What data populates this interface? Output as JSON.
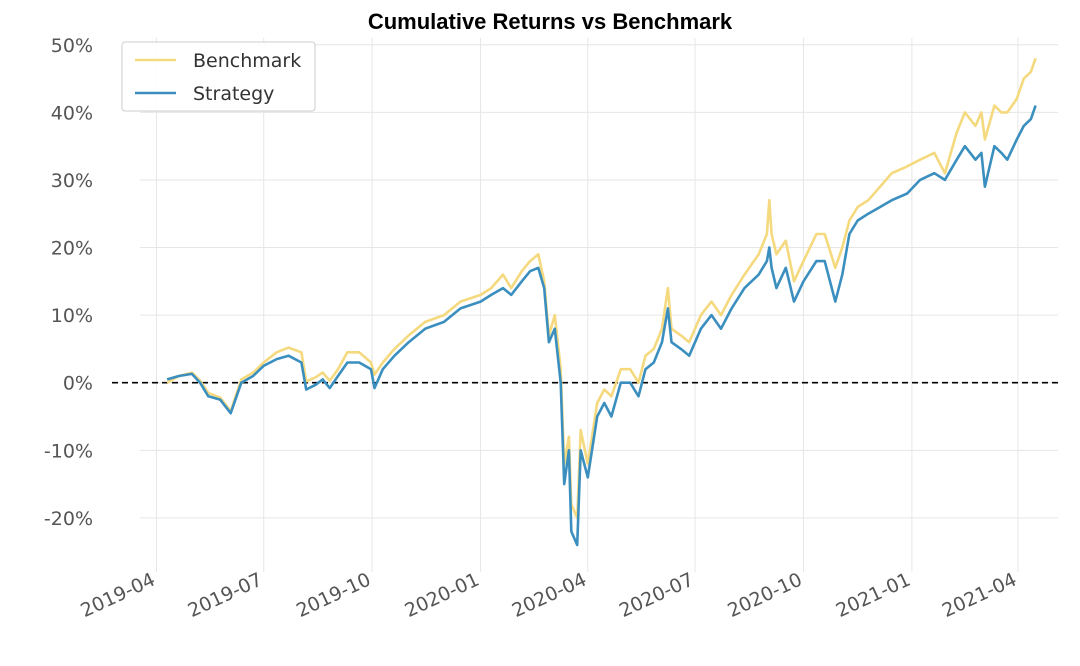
{
  "chart_data": {
    "type": "line",
    "title": "Cumulative Returns vs Benchmark",
    "xlabel": "",
    "ylabel": "",
    "ylim": [
      -0.28,
      0.51
    ],
    "xlim": [
      "2019-03-18",
      "2021-05-05"
    ],
    "grid": true,
    "legend_position": "top-left",
    "x_ticks": [
      {
        "date": "2019-04-01",
        "label": "2019-04"
      },
      {
        "date": "2019-07-01",
        "label": "2019-07"
      },
      {
        "date": "2019-10-01",
        "label": "2019-10"
      },
      {
        "date": "2020-01-01",
        "label": "2020-01"
      },
      {
        "date": "2020-04-01",
        "label": "2020-04"
      },
      {
        "date": "2020-07-01",
        "label": "2020-07"
      },
      {
        "date": "2020-10-01",
        "label": "2020-10"
      },
      {
        "date": "2021-01-01",
        "label": "2021-01"
      },
      {
        "date": "2021-04-01",
        "label": "2021-04"
      }
    ],
    "y_ticks": [
      {
        "value": 0.5,
        "label": "50%"
      },
      {
        "value": 0.4,
        "label": "40%"
      },
      {
        "value": 0.3,
        "label": "30%"
      },
      {
        "value": 0.2,
        "label": "20%"
      },
      {
        "value": 0.1,
        "label": "10%"
      },
      {
        "value": 0.0,
        "label": "0%"
      },
      {
        "value": -0.1,
        "label": "-10%"
      },
      {
        "value": -0.2,
        "label": "-20%"
      }
    ],
    "reference_line": {
      "value": 0.0,
      "style": "dashed",
      "color": "#000000"
    },
    "series": [
      {
        "name": "Benchmark",
        "color": "#f5d97e",
        "points": [
          [
            "2019-04-10",
            0.0
          ],
          [
            "2019-04-20",
            0.01
          ],
          [
            "2019-05-01",
            0.015
          ],
          [
            "2019-05-08",
            0.003
          ],
          [
            "2019-05-15",
            -0.015
          ],
          [
            "2019-05-25",
            -0.022
          ],
          [
            "2019-06-03",
            -0.042
          ],
          [
            "2019-06-12",
            0.005
          ],
          [
            "2019-06-22",
            0.015
          ],
          [
            "2019-07-01",
            0.03
          ],
          [
            "2019-07-12",
            0.045
          ],
          [
            "2019-07-22",
            0.052
          ],
          [
            "2019-08-02",
            0.045
          ],
          [
            "2019-08-06",
            0.002
          ],
          [
            "2019-08-14",
            0.008
          ],
          [
            "2019-08-20",
            0.015
          ],
          [
            "2019-08-26",
            0.003
          ],
          [
            "2019-09-02",
            0.02
          ],
          [
            "2019-09-10",
            0.045
          ],
          [
            "2019-09-20",
            0.045
          ],
          [
            "2019-09-30",
            0.03
          ],
          [
            "2019-10-03",
            0.012
          ],
          [
            "2019-10-10",
            0.03
          ],
          [
            "2019-10-20",
            0.05
          ],
          [
            "2019-11-01",
            0.07
          ],
          [
            "2019-11-15",
            0.09
          ],
          [
            "2019-12-01",
            0.1
          ],
          [
            "2019-12-15",
            0.12
          ],
          [
            "2020-01-01",
            0.13
          ],
          [
            "2020-01-10",
            0.14
          ],
          [
            "2020-01-20",
            0.16
          ],
          [
            "2020-01-27",
            0.14
          ],
          [
            "2020-02-05",
            0.165
          ],
          [
            "2020-02-12",
            0.18
          ],
          [
            "2020-02-19",
            0.19
          ],
          [
            "2020-02-24",
            0.15
          ],
          [
            "2020-02-28",
            0.07
          ],
          [
            "2020-03-04",
            0.1
          ],
          [
            "2020-03-09",
            0.02
          ],
          [
            "2020-03-12",
            -0.12
          ],
          [
            "2020-03-16",
            -0.08
          ],
          [
            "2020-03-18",
            -0.18
          ],
          [
            "2020-03-23",
            -0.2
          ],
          [
            "2020-03-26",
            -0.07
          ],
          [
            "2020-04-01",
            -0.12
          ],
          [
            "2020-04-09",
            -0.03
          ],
          [
            "2020-04-15",
            -0.01
          ],
          [
            "2020-04-21",
            -0.02
          ],
          [
            "2020-04-29",
            0.02
          ],
          [
            "2020-05-07",
            0.02
          ],
          [
            "2020-05-14",
            0.0
          ],
          [
            "2020-05-20",
            0.04
          ],
          [
            "2020-05-27",
            0.05
          ],
          [
            "2020-06-03",
            0.08
          ],
          [
            "2020-06-08",
            0.14
          ],
          [
            "2020-06-11",
            0.08
          ],
          [
            "2020-06-19",
            0.07
          ],
          [
            "2020-06-26",
            0.06
          ],
          [
            "2020-07-06",
            0.1
          ],
          [
            "2020-07-15",
            0.12
          ],
          [
            "2020-07-23",
            0.1
          ],
          [
            "2020-08-01",
            0.13
          ],
          [
            "2020-08-12",
            0.16
          ],
          [
            "2020-08-24",
            0.19
          ],
          [
            "2020-08-31",
            0.22
          ],
          [
            "2020-09-02",
            0.27
          ],
          [
            "2020-09-04",
            0.22
          ],
          [
            "2020-09-08",
            0.19
          ],
          [
            "2020-09-16",
            0.21
          ],
          [
            "2020-09-23",
            0.15
          ],
          [
            "2020-10-01",
            0.18
          ],
          [
            "2020-10-12",
            0.22
          ],
          [
            "2020-10-19",
            0.22
          ],
          [
            "2020-10-28",
            0.17
          ],
          [
            "2020-11-03",
            0.2
          ],
          [
            "2020-11-09",
            0.24
          ],
          [
            "2020-11-16",
            0.26
          ],
          [
            "2020-11-25",
            0.27
          ],
          [
            "2020-12-05",
            0.29
          ],
          [
            "2020-12-15",
            0.31
          ],
          [
            "2020-12-28",
            0.32
          ],
          [
            "2021-01-08",
            0.33
          ],
          [
            "2021-01-20",
            0.34
          ],
          [
            "2021-01-29",
            0.31
          ],
          [
            "2021-02-08",
            0.37
          ],
          [
            "2021-02-15",
            0.4
          ],
          [
            "2021-02-24",
            0.38
          ],
          [
            "2021-03-01",
            0.4
          ],
          [
            "2021-03-04",
            0.36
          ],
          [
            "2021-03-12",
            0.41
          ],
          [
            "2021-03-18",
            0.4
          ],
          [
            "2021-03-23",
            0.4
          ],
          [
            "2021-03-31",
            0.42
          ],
          [
            "2021-04-06",
            0.45
          ],
          [
            "2021-04-12",
            0.46
          ],
          [
            "2021-04-16",
            0.48
          ]
        ]
      },
      {
        "name": "Strategy",
        "color": "#3b8fbf",
        "points": [
          [
            "2019-04-10",
            0.005
          ],
          [
            "2019-04-20",
            0.01
          ],
          [
            "2019-05-01",
            0.013
          ],
          [
            "2019-05-08",
            0.0
          ],
          [
            "2019-05-15",
            -0.02
          ],
          [
            "2019-05-25",
            -0.025
          ],
          [
            "2019-06-03",
            -0.045
          ],
          [
            "2019-06-12",
            0.0
          ],
          [
            "2019-06-22",
            0.01
          ],
          [
            "2019-07-01",
            0.025
          ],
          [
            "2019-07-12",
            0.035
          ],
          [
            "2019-07-22",
            0.04
          ],
          [
            "2019-08-02",
            0.03
          ],
          [
            "2019-08-06",
            -0.01
          ],
          [
            "2019-08-14",
            -0.003
          ],
          [
            "2019-08-20",
            0.005
          ],
          [
            "2019-08-26",
            -0.008
          ],
          [
            "2019-09-02",
            0.01
          ],
          [
            "2019-09-10",
            0.03
          ],
          [
            "2019-09-20",
            0.03
          ],
          [
            "2019-09-30",
            0.02
          ],
          [
            "2019-10-03",
            -0.008
          ],
          [
            "2019-10-10",
            0.02
          ],
          [
            "2019-10-20",
            0.04
          ],
          [
            "2019-11-01",
            0.06
          ],
          [
            "2019-11-15",
            0.08
          ],
          [
            "2019-12-01",
            0.09
          ],
          [
            "2019-12-15",
            0.11
          ],
          [
            "2020-01-01",
            0.12
          ],
          [
            "2020-01-10",
            0.13
          ],
          [
            "2020-01-20",
            0.14
          ],
          [
            "2020-01-27",
            0.13
          ],
          [
            "2020-02-05",
            0.15
          ],
          [
            "2020-02-12",
            0.165
          ],
          [
            "2020-02-19",
            0.17
          ],
          [
            "2020-02-24",
            0.14
          ],
          [
            "2020-02-28",
            0.06
          ],
          [
            "2020-03-04",
            0.08
          ],
          [
            "2020-03-09",
            0.0
          ],
          [
            "2020-03-12",
            -0.15
          ],
          [
            "2020-03-16",
            -0.1
          ],
          [
            "2020-03-18",
            -0.22
          ],
          [
            "2020-03-23",
            -0.24
          ],
          [
            "2020-03-26",
            -0.1
          ],
          [
            "2020-04-01",
            -0.14
          ],
          [
            "2020-04-09",
            -0.05
          ],
          [
            "2020-04-15",
            -0.03
          ],
          [
            "2020-04-21",
            -0.05
          ],
          [
            "2020-04-29",
            0.0
          ],
          [
            "2020-05-07",
            0.0
          ],
          [
            "2020-05-14",
            -0.02
          ],
          [
            "2020-05-20",
            0.02
          ],
          [
            "2020-05-27",
            0.03
          ],
          [
            "2020-06-03",
            0.06
          ],
          [
            "2020-06-08",
            0.11
          ],
          [
            "2020-06-11",
            0.06
          ],
          [
            "2020-06-19",
            0.05
          ],
          [
            "2020-06-26",
            0.04
          ],
          [
            "2020-07-06",
            0.08
          ],
          [
            "2020-07-15",
            0.1
          ],
          [
            "2020-07-23",
            0.08
          ],
          [
            "2020-08-01",
            0.11
          ],
          [
            "2020-08-12",
            0.14
          ],
          [
            "2020-08-24",
            0.16
          ],
          [
            "2020-08-31",
            0.18
          ],
          [
            "2020-09-02",
            0.2
          ],
          [
            "2020-09-04",
            0.17
          ],
          [
            "2020-09-08",
            0.14
          ],
          [
            "2020-09-16",
            0.17
          ],
          [
            "2020-09-23",
            0.12
          ],
          [
            "2020-10-01",
            0.15
          ],
          [
            "2020-10-12",
            0.18
          ],
          [
            "2020-10-19",
            0.18
          ],
          [
            "2020-10-28",
            0.12
          ],
          [
            "2020-11-03",
            0.16
          ],
          [
            "2020-11-09",
            0.22
          ],
          [
            "2020-11-16",
            0.24
          ],
          [
            "2020-11-25",
            0.25
          ],
          [
            "2020-12-05",
            0.26
          ],
          [
            "2020-12-15",
            0.27
          ],
          [
            "2020-12-28",
            0.28
          ],
          [
            "2021-01-08",
            0.3
          ],
          [
            "2021-01-20",
            0.31
          ],
          [
            "2021-01-29",
            0.3
          ],
          [
            "2021-02-08",
            0.33
          ],
          [
            "2021-02-15",
            0.35
          ],
          [
            "2021-02-24",
            0.33
          ],
          [
            "2021-03-01",
            0.34
          ],
          [
            "2021-03-04",
            0.29
          ],
          [
            "2021-03-12",
            0.35
          ],
          [
            "2021-03-18",
            0.34
          ],
          [
            "2021-03-23",
            0.33
          ],
          [
            "2021-03-31",
            0.36
          ],
          [
            "2021-04-06",
            0.38
          ],
          [
            "2021-04-12",
            0.39
          ],
          [
            "2021-04-16",
            0.41
          ]
        ]
      }
    ],
    "legend": [
      {
        "label": "Benchmark",
        "color": "#f5d97e"
      },
      {
        "label": "Strategy",
        "color": "#3b8fbf"
      }
    ]
  }
}
